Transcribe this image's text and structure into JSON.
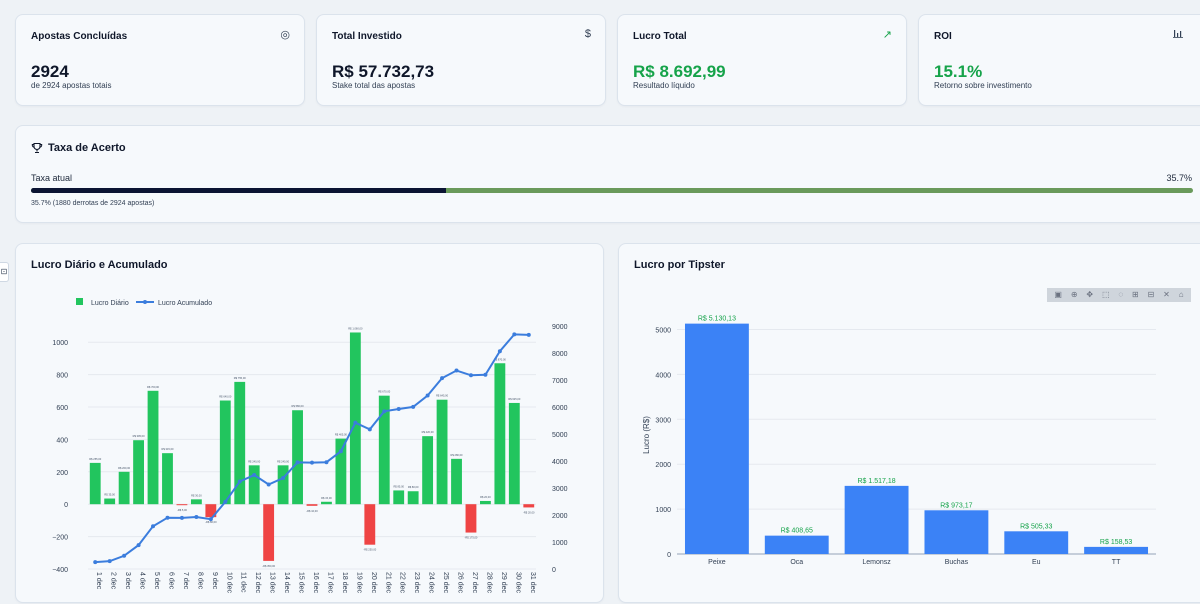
{
  "kpis": [
    {
      "title": "Apostas Concluídas",
      "icon": "target-icon",
      "value": "2924",
      "sub": "de 2924 apostas totais"
    },
    {
      "title": "Total Investido",
      "icon": "dollar-icon",
      "value": "R$ 57.732,73",
      "sub": "Stake total das apostas"
    },
    {
      "title": "Lucro Total",
      "icon": "trending-up-icon",
      "value": "R$ 8.692,99",
      "sub": "Resultado líquido"
    },
    {
      "title": "ROI",
      "icon": "bar-chart-icon",
      "value": "15.1%",
      "sub": "Retorno sobre investimento"
    }
  ],
  "hit_rate": {
    "title": "Taxa de Acerto",
    "label": "Taxa atual",
    "value_text": "35.7%",
    "fraction": 0.357,
    "detail": "35.7% (1880 derrotas de 2924 apostas)"
  },
  "daily_panel": {
    "title": "Lucro Diário e Acumulado"
  },
  "tipster_panel": {
    "title": "Lucro por Tipster"
  },
  "colors": {
    "green": "#22c55e",
    "red": "#ef4444",
    "blue": "#3b82f6",
    "line": "#3b7ddd",
    "positive_text": "#16a34a"
  },
  "chart_data": [
    {
      "type": "bar",
      "title": "Lucro Diário e Acumulado",
      "legend": [
        "Lucro Diário",
        "Lucro Acumulado"
      ],
      "legend_position": "top-left",
      "categories": [
        "1 dec",
        "2 dec",
        "3 dec",
        "4 dec",
        "5 dec",
        "6 dec",
        "7 dec",
        "8 dec",
        "9 dec",
        "10 dec",
        "11 dec",
        "12 dec",
        "13 dec",
        "14 dec",
        "15 dec",
        "16 dec",
        "17 dec",
        "18 dec",
        "19 dec",
        "20 dec",
        "21 dec",
        "22 dec",
        "23 dec",
        "24 dec",
        "25 dec",
        "26 dec",
        "27 dec",
        "28 dec",
        "29 dec",
        "30 dec",
        "31 dec"
      ],
      "series": [
        {
          "name": "Lucro Diário",
          "kind": "bar",
          "axis": "left",
          "values": [
            255,
            35,
            200,
            395,
            700,
            315,
            -5,
            30,
            -80,
            640,
            755,
            240,
            -350,
            240,
            580,
            -10,
            15,
            405,
            1060,
            -250,
            670,
            85,
            80,
            420,
            645,
            280,
            -175,
            20,
            870,
            625,
            -20
          ]
        },
        {
          "name": "Lucro Acumulado",
          "kind": "line",
          "axis": "right",
          "values": [
            255,
            290,
            490,
            885,
            1585,
            1900,
            1895,
            1925,
            1845,
            2485,
            3240,
            3480,
            3130,
            3370,
            3950,
            3940,
            3955,
            4360,
            5420,
            5170,
            5840,
            5925,
            6005,
            6425,
            7070,
            7350,
            7175,
            7195,
            8065,
            8690,
            8670
          ]
        }
      ],
      "ylim_left": [
        -400,
        1100
      ],
      "yticks_left": [
        -400,
        -200,
        0,
        200,
        400,
        600,
        800,
        1000
      ],
      "ylim_right": [
        0,
        9000
      ],
      "yticks_right": [
        0,
        1000,
        2000,
        3000,
        4000,
        5000,
        6000,
        7000,
        8000,
        9000
      ]
    },
    {
      "type": "bar",
      "title": "Lucro por Tipster",
      "ylabel": "Lucro (R$)",
      "categories": [
        "Peixe",
        "Oca",
        "Lemonsz",
        "Buchas",
        "Eu",
        "TT"
      ],
      "values": [
        5130.13,
        408.65,
        1517.18,
        973.17,
        505.33,
        158.53
      ],
      "labels": [
        "R$ 5.130,13",
        "R$ 408,65",
        "R$ 1.517,18",
        "R$ 973,17",
        "R$ 505,33",
        "R$ 158,53"
      ],
      "ylim": [
        0,
        5300
      ],
      "yticks": [
        0,
        1000,
        2000,
        3000,
        4000,
        5000
      ]
    }
  ]
}
